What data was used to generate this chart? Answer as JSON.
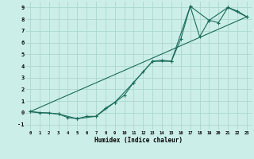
{
  "xlabel": "Humidex (Indice chaleur)",
  "bg_color": "#cceee8",
  "line_color": "#1a6b5a",
  "grid_color": "#aad8d0",
  "xlim": [
    -0.5,
    23.5
  ],
  "ylim": [
    -1.5,
    9.5
  ],
  "xticks": [
    0,
    1,
    2,
    3,
    4,
    5,
    6,
    7,
    8,
    9,
    10,
    11,
    12,
    13,
    14,
    15,
    16,
    17,
    18,
    19,
    20,
    21,
    22,
    23
  ],
  "yticks": [
    -1,
    0,
    1,
    2,
    3,
    4,
    5,
    6,
    7,
    8,
    9
  ],
  "line1_x": [
    0,
    1,
    2,
    3,
    4,
    5,
    6,
    7,
    8,
    9,
    10,
    11,
    12,
    13,
    14,
    15,
    16,
    17,
    18,
    19,
    20,
    21,
    22,
    23
  ],
  "line1_y": [
    0.1,
    0.0,
    0.0,
    -0.1,
    -0.4,
    -0.5,
    -0.3,
    -0.3,
    0.4,
    0.9,
    1.5,
    2.6,
    3.5,
    4.4,
    4.5,
    4.4,
    6.3,
    9.1,
    6.5,
    7.9,
    7.7,
    9.0,
    8.7,
    8.2
  ],
  "line2_x": [
    0,
    3,
    5,
    7,
    9,
    11,
    13,
    15,
    17,
    19,
    21,
    23
  ],
  "line2_y": [
    0.1,
    -0.1,
    -0.5,
    -0.3,
    0.9,
    2.6,
    4.4,
    4.4,
    9.1,
    7.9,
    9.0,
    8.2
  ],
  "line3_x": [
    0,
    23
  ],
  "line3_y": [
    0.1,
    8.2
  ]
}
